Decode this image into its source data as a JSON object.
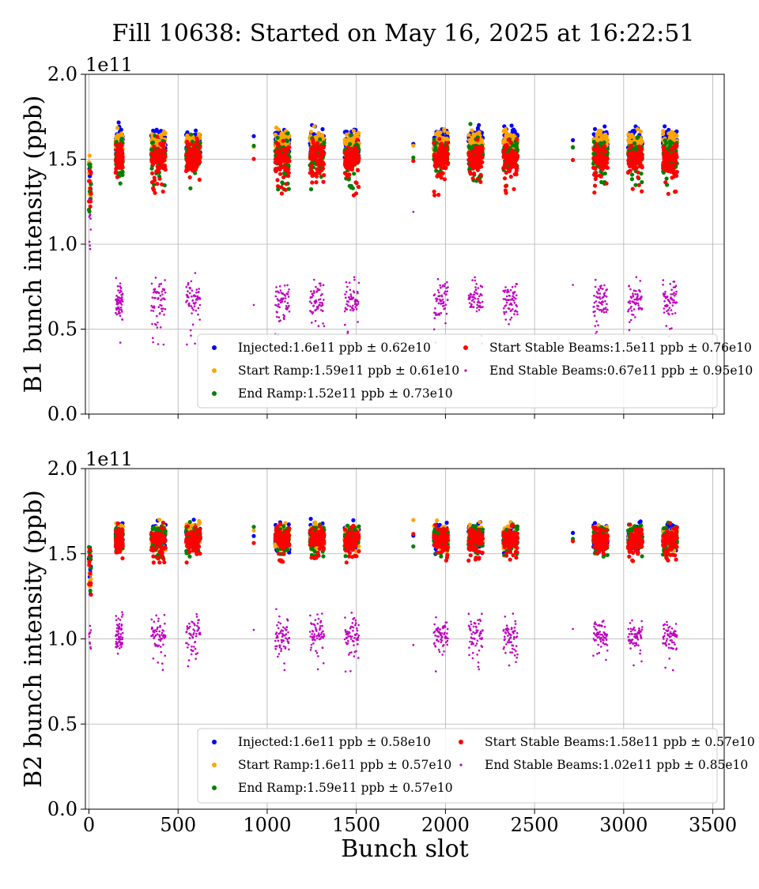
{
  "chart_data": {
    "type": "scatter",
    "title": "Fill 10638: Started on May 16, 2025 at 16:22:51",
    "xlabel": "Bunch slot",
    "xlim": [
      -20,
      3564
    ],
    "xticks": [
      "0",
      "500",
      "1000",
      "1500",
      "2000",
      "2500",
      "3000",
      "3500"
    ],
    "xtick_values": [
      0,
      500,
      1000,
      1500,
      2000,
      2500,
      3000,
      3500
    ],
    "grid": true,
    "legend_position": "lower-right",
    "colors": {
      "injected": "#0000ff",
      "start_ramp": "#ffa500",
      "end_ramp": "#008000",
      "start_stable": "#ff0000",
      "end_stable": "#bf00bf"
    },
    "train_groups_approx": [
      {
        "start": 0,
        "end": 12,
        "type": "pilot-and-short"
      },
      {
        "start": 150,
        "end": 190,
        "type": "train"
      },
      {
        "start": 350,
        "end": 430,
        "type": "train"
      },
      {
        "start": 545,
        "end": 625,
        "type": "train"
      },
      {
        "start": 925,
        "end": 925,
        "type": "single"
      },
      {
        "start": 1045,
        "end": 1125,
        "type": "train"
      },
      {
        "start": 1240,
        "end": 1320,
        "type": "train"
      },
      {
        "start": 1435,
        "end": 1515,
        "type": "train"
      },
      {
        "start": 1820,
        "end": 1820,
        "type": "single"
      },
      {
        "start": 1935,
        "end": 2015,
        "type": "train"
      },
      {
        "start": 2130,
        "end": 2210,
        "type": "train"
      },
      {
        "start": 2325,
        "end": 2405,
        "type": "train"
      },
      {
        "start": 2715,
        "end": 2715,
        "type": "single"
      },
      {
        "start": 2830,
        "end": 2910,
        "type": "train"
      },
      {
        "start": 3025,
        "end": 3105,
        "type": "train"
      },
      {
        "start": 3220,
        "end": 3300,
        "type": "train"
      }
    ],
    "panels": [
      {
        "id": "b1",
        "ylabel": "B1 bunch intensity (ppb)",
        "y_multiplier": "1e11",
        "ylim": [
          0.0,
          2.0
        ],
        "yticks": [
          "0.0",
          "0.5",
          "1.0",
          "1.5",
          "2.0"
        ],
        "ytick_values": [
          0.0,
          0.5,
          1.0,
          1.5,
          2.0
        ],
        "series": [
          {
            "key": "injected",
            "name": "Injected:1.6e11 ppb ± 0.62e10",
            "mean": 1.6,
            "spread": 0.062,
            "low_edge": -0.04
          },
          {
            "key": "start_ramp",
            "name": "Start Ramp:1.59e11 ppb ± 0.61e10",
            "mean": 1.59,
            "spread": 0.061,
            "low_edge": -0.05
          },
          {
            "key": "end_ramp",
            "name": "End Ramp:1.52e11 ppb ± 0.73e10",
            "mean": 1.52,
            "spread": 0.073,
            "low_edge": -0.09
          },
          {
            "key": "start_stable",
            "name": "Start Stable Beams:1.5e11 ppb ± 0.76e10",
            "mean": 1.5,
            "spread": 0.076,
            "low_edge": -0.1
          },
          {
            "key": "end_stable",
            "name": "End Stable Beams:0.67e11 ppb ± 0.95e10",
            "mean": 0.67,
            "spread": 0.095,
            "low_edge": -0.12
          }
        ]
      },
      {
        "id": "b2",
        "ylabel": "B2 bunch intensity (ppb)",
        "y_multiplier": "1e11",
        "ylim": [
          0.0,
          2.0
        ],
        "yticks": [
          "0.0",
          "0.5",
          "1.0",
          "1.5",
          "2.0"
        ],
        "ytick_values": [
          0.0,
          0.5,
          1.0,
          1.5,
          2.0
        ],
        "series": [
          {
            "key": "injected",
            "name": "Injected:1.6e11 ppb ± 0.58e10",
            "mean": 1.6,
            "spread": 0.058,
            "low_edge": -0.03
          },
          {
            "key": "start_ramp",
            "name": "Start Ramp:1.6e11 ppb ± 0.57e10",
            "mean": 1.6,
            "spread": 0.057,
            "low_edge": -0.04
          },
          {
            "key": "end_ramp",
            "name": "End Ramp:1.59e11 ppb ± 0.57e10",
            "mean": 1.59,
            "spread": 0.057,
            "low_edge": -0.05
          },
          {
            "key": "start_stable",
            "name": "Start Stable Beams:1.58e11 ppb ± 0.57e10",
            "mean": 1.58,
            "spread": 0.057,
            "low_edge": -0.06
          },
          {
            "key": "end_stable",
            "name": "End Stable Beams:1.02e11 ppb ± 0.85e10",
            "mean": 1.02,
            "spread": 0.085,
            "low_edge": -0.1
          }
        ]
      }
    ]
  }
}
